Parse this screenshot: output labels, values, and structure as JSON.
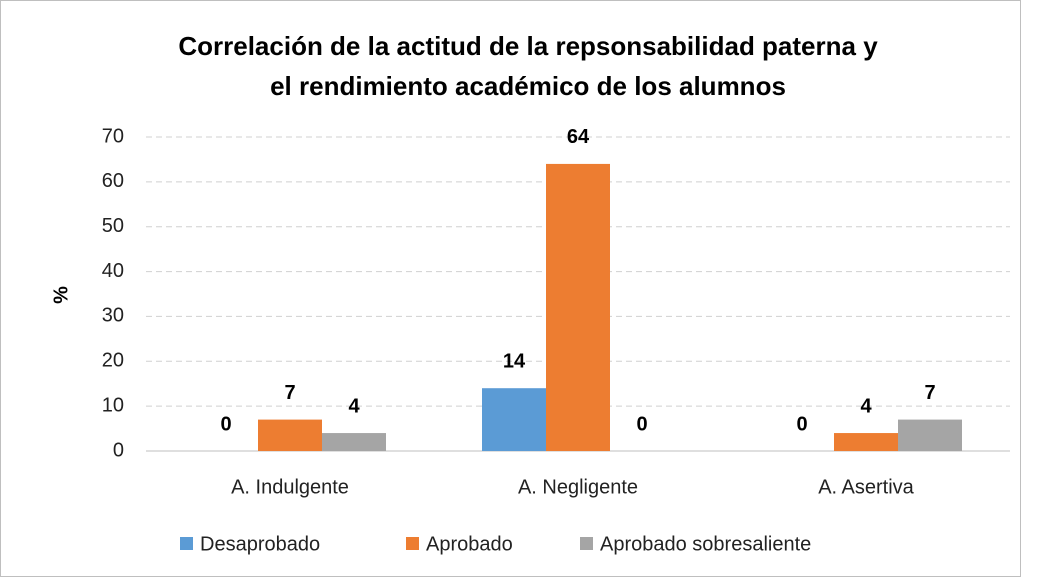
{
  "chart_data": {
    "type": "bar",
    "title": [
      "Correlación de la actitud de la repsonsabilidad paterna y",
      "el rendimiento académico de los alumnos"
    ],
    "y_label": "%",
    "categories": [
      "A. Indulgente",
      "A. Negligente",
      "A. Asertiva"
    ],
    "series": [
      {
        "name": "Desaprobado",
        "color": "#5b9bd5",
        "values": [
          0,
          14,
          0
        ]
      },
      {
        "name": "Aprobado",
        "color": "#ed7d31",
        "values": [
          7,
          64,
          4
        ]
      },
      {
        "name": "Aprobado sobresaliente",
        "color": "#a5a5a5",
        "values": [
          4,
          0,
          7
        ]
      }
    ],
    "ylim": [
      0,
      70
    ],
    "yticks": [
      0,
      10,
      20,
      30,
      40,
      50,
      60,
      70
    ],
    "grid": true,
    "legend": "bottom"
  }
}
